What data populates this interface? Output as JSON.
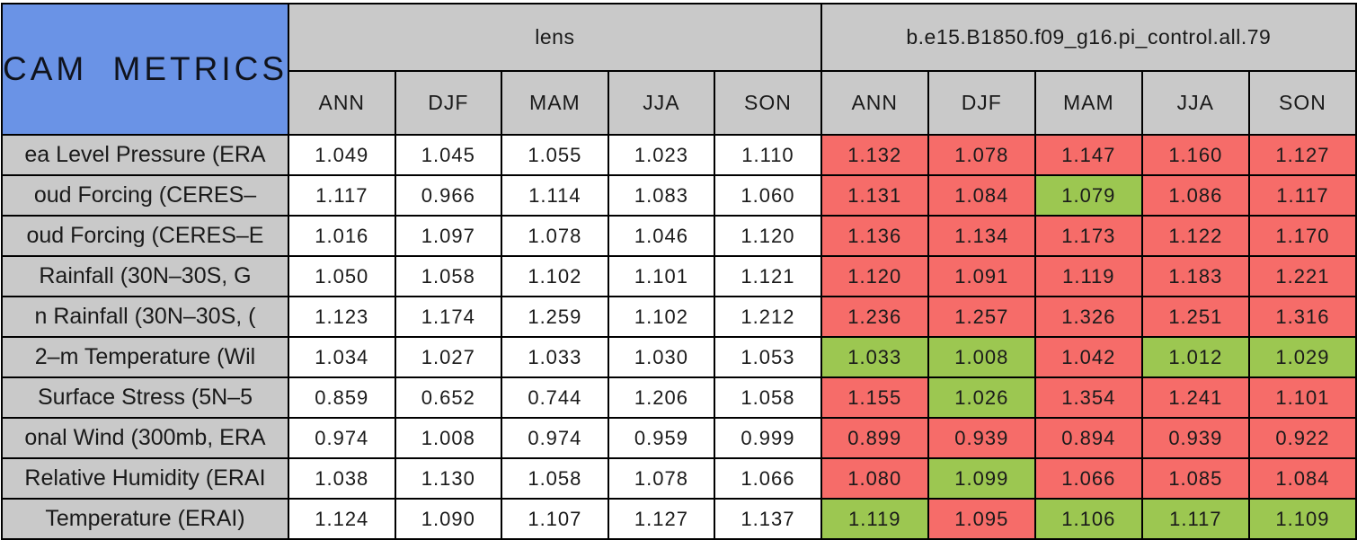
{
  "colors": {
    "blue": "#6A93E6",
    "gray": "#C9C9C9",
    "red": "#F66C69",
    "green": "#9CC751",
    "border": "#000000",
    "plain_cell": "#FFFFFF"
  },
  "chart_data": {
    "type": "table",
    "title": "CAM METRICS",
    "column_groups": [
      {
        "label": "lens",
        "seasons": [
          "ANN",
          "DJF",
          "MAM",
          "JJA",
          "SON"
        ]
      },
      {
        "label": "b.e15.B1850.f09_g16.pi_control.all.79",
        "seasons": [
          "ANN",
          "DJF",
          "MAM",
          "JJA",
          "SON"
        ]
      }
    ],
    "rows": [
      {
        "label": "ea Level Pressure (ERA",
        "lens": [
          "1.049",
          "1.045",
          "1.055",
          "1.023",
          "1.110"
        ],
        "control": [
          "1.132",
          "1.078",
          "1.147",
          "1.160",
          "1.127"
        ],
        "control_colors": [
          "red",
          "red",
          "red",
          "red",
          "red"
        ]
      },
      {
        "label": "oud Forcing (CERES–",
        "lens": [
          "1.117",
          "0.966",
          "1.114",
          "1.083",
          "1.060"
        ],
        "control": [
          "1.131",
          "1.084",
          "1.079",
          "1.086",
          "1.117"
        ],
        "control_colors": [
          "red",
          "red",
          "green",
          "red",
          "red"
        ]
      },
      {
        "label": "oud Forcing (CERES–E",
        "lens": [
          "1.016",
          "1.097",
          "1.078",
          "1.046",
          "1.120"
        ],
        "control": [
          "1.136",
          "1.134",
          "1.173",
          "1.122",
          "1.170"
        ],
        "control_colors": [
          "red",
          "red",
          "red",
          "red",
          "red"
        ]
      },
      {
        "label": "Rainfall (30N–30S, G",
        "lens": [
          "1.050",
          "1.058",
          "1.102",
          "1.101",
          "1.121"
        ],
        "control": [
          "1.120",
          "1.091",
          "1.119",
          "1.183",
          "1.221"
        ],
        "control_colors": [
          "red",
          "red",
          "red",
          "red",
          "red"
        ]
      },
      {
        "label": "n Rainfall (30N–30S, (",
        "lens": [
          "1.123",
          "1.174",
          "1.259",
          "1.102",
          "1.212"
        ],
        "control": [
          "1.236",
          "1.257",
          "1.326",
          "1.251",
          "1.316"
        ],
        "control_colors": [
          "red",
          "red",
          "red",
          "red",
          "red"
        ]
      },
      {
        "label": "2–m Temperature (Wil",
        "lens": [
          "1.034",
          "1.027",
          "1.033",
          "1.030",
          "1.053"
        ],
        "control": [
          "1.033",
          "1.008",
          "1.042",
          "1.012",
          "1.029"
        ],
        "control_colors": [
          "green",
          "green",
          "red",
          "green",
          "green"
        ]
      },
      {
        "label": "Surface Stress (5N–5",
        "lens": [
          "0.859",
          "0.652",
          "0.744",
          "1.206",
          "1.058"
        ],
        "control": [
          "1.155",
          "1.026",
          "1.354",
          "1.241",
          "1.101"
        ],
        "control_colors": [
          "red",
          "green",
          "red",
          "red",
          "red"
        ]
      },
      {
        "label": "onal Wind (300mb, ERA",
        "lens": [
          "0.974",
          "1.008",
          "0.974",
          "0.959",
          "0.999"
        ],
        "control": [
          "0.899",
          "0.939",
          "0.894",
          "0.939",
          "0.922"
        ],
        "control_colors": [
          "red",
          "red",
          "red",
          "red",
          "red"
        ]
      },
      {
        "label": "Relative Humidity (ERAI",
        "lens": [
          "1.038",
          "1.130",
          "1.058",
          "1.078",
          "1.066"
        ],
        "control": [
          "1.080",
          "1.099",
          "1.066",
          "1.085",
          "1.084"
        ],
        "control_colors": [
          "red",
          "green",
          "red",
          "red",
          "red"
        ]
      },
      {
        "label": "Temperature (ERAI)",
        "lens": [
          "1.124",
          "1.090",
          "1.107",
          "1.127",
          "1.137"
        ],
        "control": [
          "1.119",
          "1.095",
          "1.106",
          "1.117",
          "1.109"
        ],
        "control_colors": [
          "green",
          "red",
          "green",
          "green",
          "green"
        ]
      }
    ]
  }
}
